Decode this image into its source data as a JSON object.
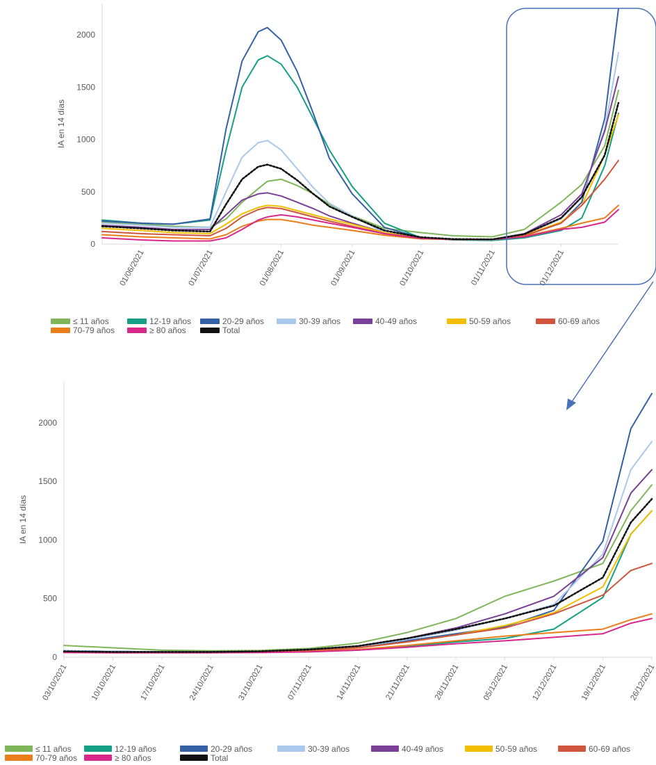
{
  "chart_data": [
    {
      "type": "line",
      "ylabel": "IA en 14 días",
      "ylim": [
        0,
        2300
      ],
      "yticks": [
        0,
        500,
        1000,
        1500,
        2000
      ],
      "x": [
        "2021-05-15",
        "2021-06-01",
        "2021-06-15",
        "2021-07-01",
        "2021-07-08",
        "2021-07-15",
        "2021-07-22",
        "2021-07-26",
        "2021-08-01",
        "2021-08-08",
        "2021-08-15",
        "2021-08-22",
        "2021-09-01",
        "2021-09-15",
        "2021-10-01",
        "2021-10-15",
        "2021-11-01",
        "2021-11-15",
        "2021-12-01",
        "2021-12-10",
        "2021-12-20",
        "2021-12-26"
      ],
      "xticks": [
        "01/06/2021",
        "01/07/2021",
        "01/08/2021",
        "01/09/2021",
        "01/10/2021",
        "01/11/2021",
        "01/12/2021"
      ],
      "xtick_dates": [
        "2021-06-01",
        "2021-07-01",
        "2021-08-01",
        "2021-09-01",
        "2021-10-01",
        "2021-11-01",
        "2021-12-01"
      ],
      "series": [
        {
          "name": "≤ 11 años",
          "color": "#7fb65a",
          "values": [
            210,
            190,
            170,
            160,
            240,
            400,
            530,
            600,
            620,
            560,
            480,
            380,
            270,
            150,
            110,
            80,
            70,
            140,
            400,
            570,
            940,
            1470
          ]
        },
        {
          "name": "12-19 años",
          "color": "#13a084",
          "values": [
            230,
            200,
            190,
            230,
            900,
            1500,
            1760,
            1800,
            1720,
            1500,
            1200,
            900,
            550,
            200,
            60,
            40,
            35,
            60,
            130,
            250,
            750,
            1250
          ]
        },
        {
          "name": "20-29 años",
          "color": "#3461a6",
          "values": [
            220,
            200,
            190,
            240,
            1100,
            1750,
            2030,
            2070,
            1950,
            1650,
            1250,
            820,
            480,
            160,
            60,
            45,
            40,
            80,
            200,
            400,
            1200,
            2250
          ]
        },
        {
          "name": "30-39 años",
          "color": "#a9c8ec",
          "values": [
            200,
            180,
            160,
            160,
            500,
            830,
            970,
            990,
            900,
            720,
            540,
            390,
            270,
            110,
            60,
            45,
            40,
            90,
            240,
            450,
            1100,
            1830
          ]
        },
        {
          "name": "40-49 años",
          "color": "#7a3f96",
          "values": [
            180,
            160,
            140,
            140,
            280,
            420,
            480,
            490,
            460,
            400,
            340,
            270,
            200,
            110,
            60,
            45,
            45,
            100,
            280,
            480,
            1080,
            1600
          ]
        },
        {
          "name": "50-59 años",
          "color": "#f2be00",
          "values": [
            150,
            130,
            110,
            100,
            190,
            290,
            350,
            370,
            360,
            320,
            280,
            240,
            190,
            110,
            55,
            45,
            45,
            85,
            210,
            370,
            850,
            1240
          ]
        },
        {
          "name": "60-69 años",
          "color": "#d0553d",
          "values": [
            120,
            100,
            90,
            80,
            150,
            260,
            330,
            350,
            340,
            300,
            260,
            220,
            170,
            100,
            55,
            45,
            45,
            80,
            200,
            370,
            620,
            800
          ]
        },
        {
          "name": "70-79 años",
          "color": "#e97e1a",
          "values": [
            90,
            70,
            60,
            50,
            90,
            170,
            220,
            235,
            235,
            210,
            180,
            160,
            130,
            85,
            50,
            45,
            45,
            75,
            150,
            200,
            250,
            370
          ]
        },
        {
          "name": "≥ 80 años",
          "color": "#d8288c",
          "values": [
            60,
            40,
            30,
            30,
            60,
            140,
            230,
            260,
            280,
            260,
            230,
            200,
            160,
            100,
            55,
            45,
            45,
            70,
            140,
            160,
            210,
            330
          ]
        },
        {
          "name": "Total",
          "color": "#111111",
          "dashed": true,
          "values": [
            170,
            150,
            130,
            120,
            380,
            620,
            740,
            760,
            720,
            610,
            480,
            360,
            260,
            130,
            65,
            48,
            45,
            95,
            250,
            450,
            850,
            1350
          ]
        }
      ]
    },
    {
      "type": "line",
      "ylabel": "IA en 14 días",
      "ylim": [
        0,
        2350
      ],
      "yticks": [
        0,
        500,
        1000,
        1500,
        2000
      ],
      "x": [
        "2021-10-03",
        "2021-10-10",
        "2021-10-17",
        "2021-10-24",
        "2021-10-31",
        "2021-11-07",
        "2021-11-14",
        "2021-11-21",
        "2021-11-28",
        "2021-12-05",
        "2021-12-12",
        "2021-12-19",
        "2021-12-23",
        "2021-12-26"
      ],
      "xticks": [
        "03/10/2021",
        "10/10/2021",
        "17/10/2021",
        "24/10/2021",
        "31/10/2021",
        "07/11/2021",
        "14/11/2021",
        "21/11/2021",
        "28/11/2021",
        "05/12/2021",
        "12/12/2021",
        "19/12/2021",
        "26/12/2021"
      ],
      "xtick_dates": [
        "2021-10-03",
        "2021-10-10",
        "2021-10-17",
        "2021-10-24",
        "2021-10-31",
        "2021-11-07",
        "2021-11-14",
        "2021-11-21",
        "2021-11-28",
        "2021-12-05",
        "2021-12-12",
        "2021-12-19",
        "2021-12-26"
      ],
      "series": [
        {
          "name": "≤ 11 años",
          "color": "#7fb65a",
          "values": [
            100,
            80,
            60,
            55,
            58,
            75,
            120,
            210,
            330,
            520,
            650,
            800,
            1250,
            1470
          ]
        },
        {
          "name": "12-19 años",
          "color": "#13a084",
          "values": [
            55,
            50,
            45,
            45,
            45,
            50,
            60,
            90,
            130,
            160,
            240,
            510,
            1050,
            1250
          ]
        },
        {
          "name": "20-29 años",
          "color": "#3461a6",
          "values": [
            55,
            50,
            45,
            45,
            48,
            60,
            85,
            140,
            200,
            260,
            400,
            990,
            1950,
            2250
          ]
        },
        {
          "name": "30-39 años",
          "color": "#a9c8ec",
          "values": [
            55,
            50,
            45,
            45,
            50,
            65,
            90,
            150,
            230,
            330,
            450,
            880,
            1600,
            1840
          ]
        },
        {
          "name": "40-49 años",
          "color": "#7a3f96",
          "values": [
            50,
            45,
            45,
            45,
            50,
            65,
            95,
            160,
            250,
            370,
            520,
            850,
            1400,
            1600
          ]
        },
        {
          "name": "50-59 años",
          "color": "#f2be00",
          "values": [
            45,
            42,
            42,
            42,
            45,
            55,
            80,
            130,
            190,
            270,
            380,
            600,
            1050,
            1250
          ]
        },
        {
          "name": "60-69 años",
          "color": "#d0553d",
          "values": [
            42,
            40,
            40,
            40,
            45,
            55,
            80,
            130,
            190,
            250,
            370,
            530,
            740,
            800
          ]
        },
        {
          "name": "70-79 años",
          "color": "#e97e1a",
          "values": [
            40,
            38,
            38,
            38,
            40,
            48,
            65,
            100,
            140,
            180,
            210,
            240,
            320,
            370
          ]
        },
        {
          "name": "≥ 80 años",
          "color": "#d8288c",
          "values": [
            40,
            38,
            38,
            38,
            40,
            45,
            60,
            85,
            115,
            140,
            170,
            200,
            290,
            330
          ]
        },
        {
          "name": "Total",
          "color": "#111111",
          "dashed": true,
          "values": [
            50,
            45,
            45,
            45,
            50,
            65,
            95,
            160,
            240,
            330,
            440,
            680,
            1150,
            1350
          ]
        }
      ]
    }
  ]
}
